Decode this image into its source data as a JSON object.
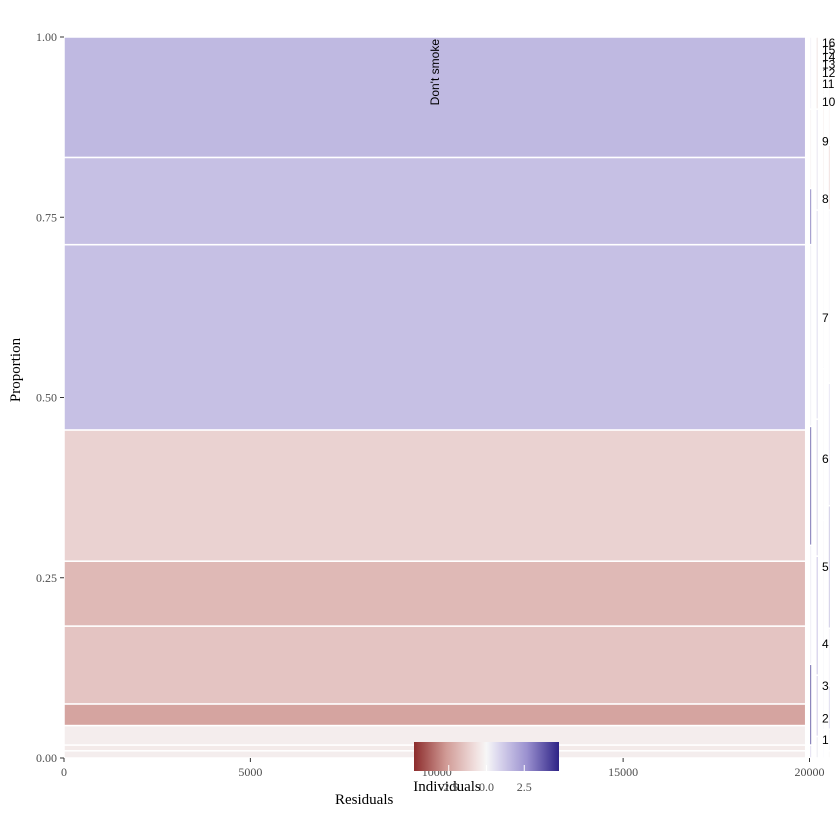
{
  "chart_data": {
    "type": "mosaic",
    "xlabel": "Individuals",
    "ylabel": "Proportion",
    "xlim": [
      0,
      20550
    ],
    "ylim": [
      0,
      1
    ],
    "x_ticks": [
      "0",
      "5000",
      "10000",
      "15000",
      "20000"
    ],
    "y_ticks": [
      "0.00",
      "0.25",
      "0.50",
      "0.75",
      "1.00"
    ],
    "legend": {
      "title": "Residuals",
      "position": "bottom",
      "ticks": [
        "-2.5",
        "0.0",
        "2.5"
      ],
      "range": [
        -4.8,
        4.8
      ],
      "colors": {
        "low": "#8c2c2c",
        "mid": "#f7f7f7",
        "high": "#2e2386"
      }
    },
    "columns": [
      {
        "label": "Don't smoke",
        "width": 20550,
        "segments": [
          {
            "from": 0.0,
            "to": 0.01,
            "resid": -0.3
          },
          {
            "from": 0.01,
            "to": 0.018,
            "resid": -0.4
          },
          {
            "from": 0.018,
            "to": 0.045,
            "resid": -0.3
          },
          {
            "from": 0.045,
            "to": 0.075,
            "resid": -2.4
          },
          {
            "from": 0.075,
            "to": 0.183,
            "resid": -1.5
          },
          {
            "from": 0.183,
            "to": 0.273,
            "resid": -1.8
          },
          {
            "from": 0.273,
            "to": 0.455,
            "resid": -1.1
          },
          {
            "from": 0.455,
            "to": 0.712,
            "resid": 1.4
          },
          {
            "from": 0.712,
            "to": 0.833,
            "resid": 1.4
          },
          {
            "from": 0.833,
            "to": 1.0,
            "resid": 1.6
          }
        ]
      },
      {
        "label": "1",
        "width": 60,
        "segments": [
          {
            "from": 0.0,
            "to": 0.018,
            "resid": 1.0
          },
          {
            "from": 0.018,
            "to": 0.13,
            "resid": 4.8
          },
          {
            "from": 0.13,
            "to": 0.295,
            "resid": 0.4
          },
          {
            "from": 0.295,
            "to": 0.46,
            "resid": 4.5
          },
          {
            "from": 0.46,
            "to": 0.712,
            "resid": 0.3
          },
          {
            "from": 0.712,
            "to": 0.79,
            "resid": 3.8
          },
          {
            "from": 0.79,
            "to": 0.9,
            "resid": -0.2
          },
          {
            "from": 0.9,
            "to": 1.0,
            "resid": 0.2
          }
        ]
      },
      {
        "label": "2",
        "width": 75,
        "segments": [
          {
            "from": 0.0,
            "to": 0.03,
            "resid": 0.2
          },
          {
            "from": 0.03,
            "to": 0.115,
            "resid": 0.8
          },
          {
            "from": 0.115,
            "to": 0.28,
            "resid": 1.0
          },
          {
            "from": 0.28,
            "to": 0.47,
            "resid": 0.6
          },
          {
            "from": 0.47,
            "to": 0.76,
            "resid": 0.5
          },
          {
            "from": 0.76,
            "to": 0.9,
            "resid": 0.3
          },
          {
            "from": 0.9,
            "to": 1.0,
            "resid": -0.4
          }
        ]
      },
      {
        "label": "3",
        "width": 45,
        "segments": [
          {
            "from": 0.0,
            "to": 0.04,
            "resid": 0.2
          },
          {
            "from": 0.04,
            "to": 0.16,
            "resid": 0.6
          },
          {
            "from": 0.16,
            "to": 0.33,
            "resid": 0.5
          },
          {
            "from": 0.33,
            "to": 0.54,
            "resid": 0.4
          },
          {
            "from": 0.54,
            "to": 0.78,
            "resid": 0.3
          },
          {
            "from": 0.78,
            "to": 0.92,
            "resid": -1.5
          },
          {
            "from": 0.92,
            "to": 1.0,
            "resid": -0.8
          }
        ]
      },
      {
        "label": "4",
        "width": 50,
        "segments": [
          {
            "from": 0.0,
            "to": 0.01,
            "resid": -0.2
          },
          {
            "from": 0.01,
            "to": 0.04,
            "resid": 0.5
          },
          {
            "from": 0.04,
            "to": 0.1,
            "resid": 2.8
          },
          {
            "from": 0.1,
            "to": 0.18,
            "resid": 0.8
          },
          {
            "from": 0.18,
            "to": 0.35,
            "resid": 3.8
          },
          {
            "from": 0.35,
            "to": 0.52,
            "resid": 2.0
          },
          {
            "from": 0.52,
            "to": 0.76,
            "resid": 0.4
          },
          {
            "from": 0.76,
            "to": 0.85,
            "resid": -2.6
          },
          {
            "from": 0.85,
            "to": 1.0,
            "resid": -0.6
          }
        ]
      }
    ],
    "right_labels": [
      "1",
      "2",
      "3",
      "4",
      "5",
      "6",
      "7",
      "8",
      "9",
      "10",
      "11",
      "12",
      "13",
      "14",
      "15",
      "16"
    ]
  }
}
